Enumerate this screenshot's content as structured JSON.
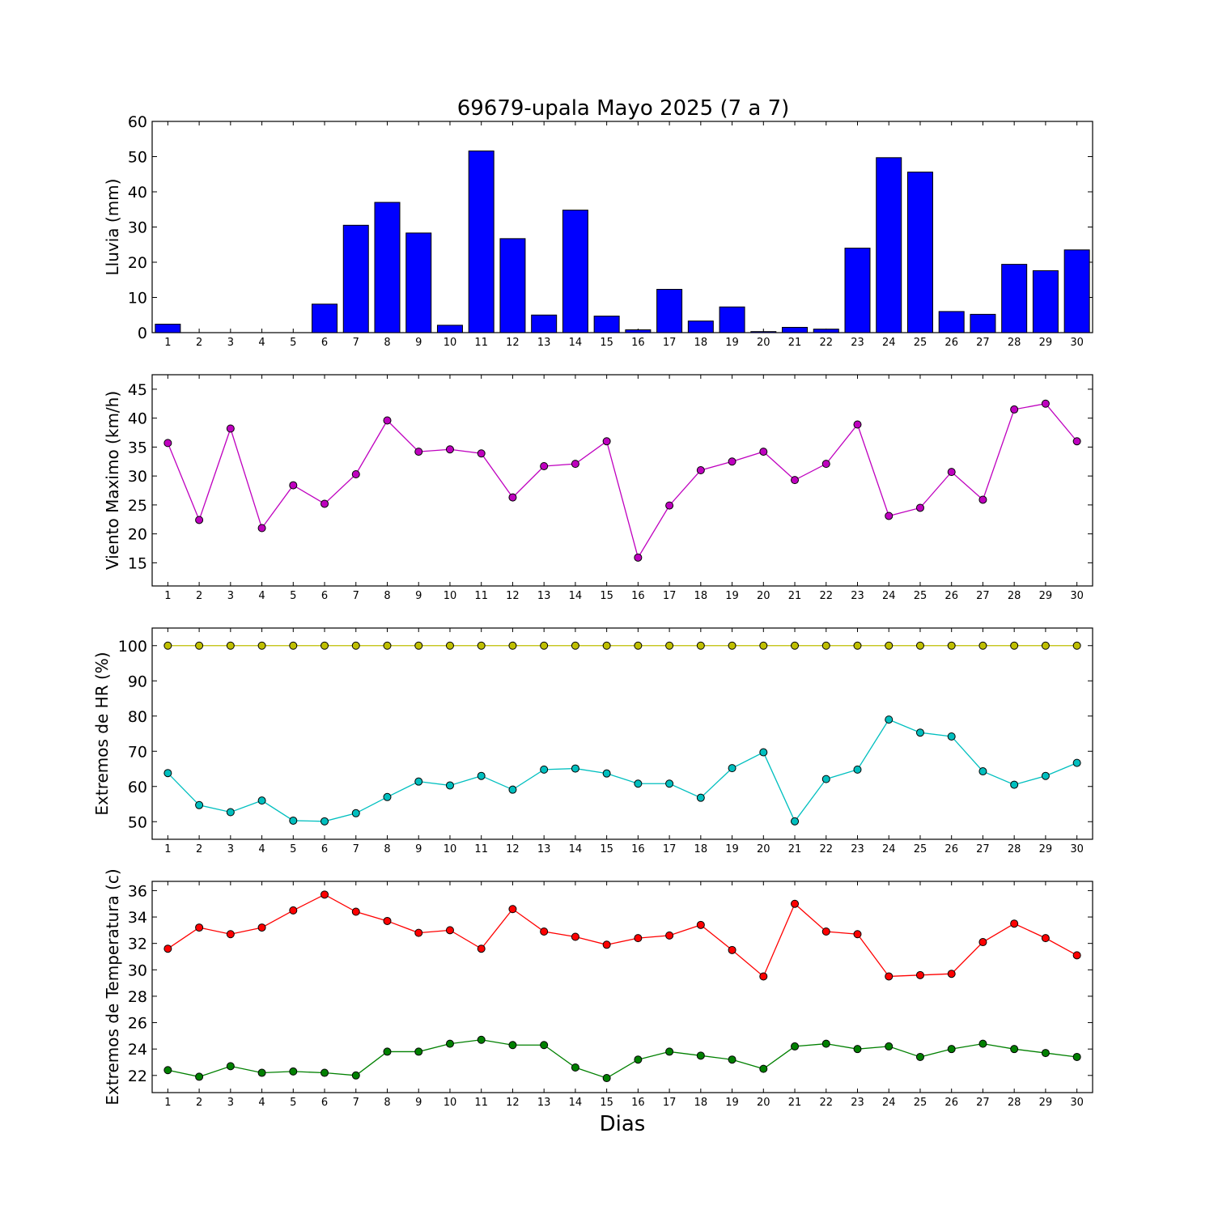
{
  "figure": {
    "title": "69679-upala Mayo 2025  (7 a 7)",
    "xlabel": "Dias"
  },
  "chart_data": [
    {
      "type": "bar",
      "ylabel": "Lluvia (mm)",
      "ylim": [
        0,
        60
      ],
      "yticks": [
        0,
        10,
        20,
        30,
        40,
        50,
        60
      ],
      "categories": [
        1,
        2,
        3,
        4,
        5,
        6,
        7,
        8,
        9,
        10,
        11,
        12,
        13,
        14,
        15,
        16,
        17,
        18,
        19,
        20,
        21,
        22,
        23,
        24,
        25,
        26,
        27,
        28,
        29,
        30
      ],
      "series": [
        {
          "color": "#0000ff",
          "values": [
            2.4,
            0,
            0,
            0,
            0,
            8.1,
            30.5,
            37,
            28.3,
            2.1,
            51.6,
            26.7,
            5,
            34.8,
            4.7,
            0.8,
            12.3,
            3.3,
            7.3,
            0.3,
            1.5,
            1,
            24,
            49.7,
            45.6,
            6,
            5.2,
            19.4,
            17.6,
            23.5
          ]
        }
      ]
    },
    {
      "type": "line",
      "ylabel": "Viento Maximo (km/h)",
      "ylim": [
        11,
        47.5
      ],
      "yticks": [
        15,
        20,
        25,
        30,
        35,
        40,
        45
      ],
      "categories": [
        1,
        2,
        3,
        4,
        5,
        6,
        7,
        8,
        9,
        10,
        11,
        12,
        13,
        14,
        15,
        16,
        17,
        18,
        19,
        20,
        21,
        22,
        23,
        24,
        25,
        26,
        27,
        28,
        29,
        30
      ],
      "series": [
        {
          "color": "#bf00bf",
          "values": [
            35.7,
            22.4,
            38.2,
            21,
            28.4,
            25.2,
            30.3,
            39.6,
            34.2,
            34.6,
            33.9,
            26.3,
            31.7,
            32.1,
            36,
            15.9,
            24.9,
            31,
            32.5,
            34.2,
            29.3,
            32.1,
            38.9,
            23.1,
            24.5,
            30.7,
            25.9,
            41.5,
            42.5,
            36
          ]
        }
      ]
    },
    {
      "type": "line",
      "ylabel": "Extremos de HR (%)",
      "ylim": [
        45,
        105
      ],
      "yticks": [
        50,
        60,
        70,
        80,
        90,
        100
      ],
      "categories": [
        1,
        2,
        3,
        4,
        5,
        6,
        7,
        8,
        9,
        10,
        11,
        12,
        13,
        14,
        15,
        16,
        17,
        18,
        19,
        20,
        21,
        22,
        23,
        24,
        25,
        26,
        27,
        28,
        29,
        30
      ],
      "series": [
        {
          "color": "#bfbf00",
          "values": [
            100,
            100,
            100,
            100,
            100,
            100,
            100,
            100,
            100,
            100,
            100,
            100,
            100,
            100,
            100,
            100,
            100,
            100,
            100,
            100,
            100,
            100,
            100,
            100,
            100,
            100,
            100,
            100,
            100,
            100
          ]
        },
        {
          "color": "#00bfbf",
          "values": [
            63.8,
            54.7,
            52.7,
            56,
            50.3,
            50.1,
            52.4,
            57,
            61.4,
            60.3,
            63,
            59.1,
            64.8,
            65.1,
            63.7,
            60.8,
            60.8,
            56.8,
            65.2,
            69.7,
            50.1,
            62.1,
            64.8,
            79,
            75.3,
            74.2,
            64.3,
            60.5,
            63,
            66.7
          ]
        }
      ]
    },
    {
      "type": "line",
      "ylabel": "Extremos de Temperatura (c)",
      "ylim": [
        20.7,
        36.7
      ],
      "yticks": [
        22,
        24,
        26,
        28,
        30,
        32,
        34,
        36
      ],
      "categories": [
        1,
        2,
        3,
        4,
        5,
        6,
        7,
        8,
        9,
        10,
        11,
        12,
        13,
        14,
        15,
        16,
        17,
        18,
        19,
        20,
        21,
        22,
        23,
        24,
        25,
        26,
        27,
        28,
        29,
        30
      ],
      "series": [
        {
          "color": "#ff0000",
          "values": [
            31.6,
            33.2,
            32.7,
            33.2,
            34.5,
            35.7,
            34.4,
            33.7,
            32.8,
            33,
            31.6,
            34.6,
            32.9,
            32.5,
            31.9,
            32.4,
            32.6,
            33.4,
            31.5,
            29.5,
            35,
            32.9,
            32.7,
            29.5,
            29.6,
            29.7,
            32.1,
            33.5,
            32.4,
            31.1
          ]
        },
        {
          "color": "#008000",
          "values": [
            22.4,
            21.9,
            22.7,
            22.2,
            22.3,
            22.2,
            22,
            23.8,
            23.8,
            24.4,
            24.7,
            24.3,
            24.3,
            22.6,
            21.8,
            23.2,
            23.8,
            23.5,
            23.2,
            22.5,
            24.2,
            24.4,
            24,
            24.2,
            23.4,
            24,
            24.4,
            24,
            23.7,
            23.4
          ]
        }
      ]
    }
  ]
}
